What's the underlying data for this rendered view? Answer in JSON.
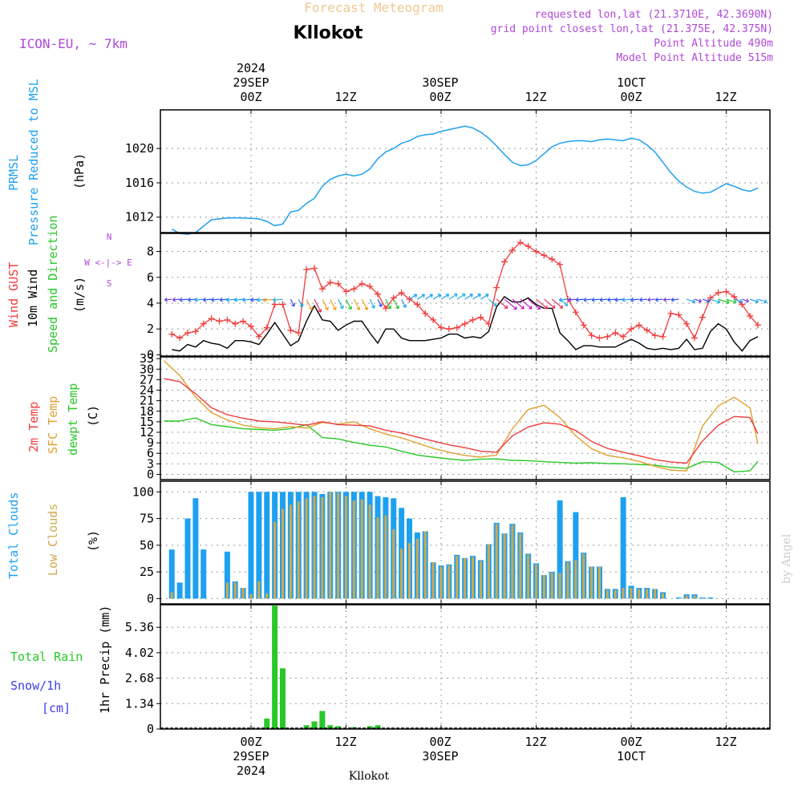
{
  "header": {
    "forecast_title": "Forecast Meteogram",
    "location": "Kllokot",
    "model": "ICON-EU, ~ 7km",
    "requested": "requested lon,lat (21.3710E, 42.3690N)",
    "gridpoint": "grid point closest lon,lat (21.375E, 42.375N)",
    "point_alt": "Point Altitude 490m",
    "model_alt": "Model Point Altitude 515m",
    "footer_location": "Kllokot",
    "credit": "by Angel"
  },
  "axes": {
    "top_times": [
      "00Z",
      "12Z",
      "00Z",
      "12Z",
      "00Z",
      "12Z"
    ],
    "top_dates": [
      "29SEP",
      "30SEP",
      "1OCT"
    ],
    "top_year": "2024",
    "bottom_times": [
      "00Z",
      "12Z",
      "00Z",
      "12Z",
      "00Z",
      "12Z"
    ],
    "bottom_dates": [
      "29SEP",
      "30SEP",
      "1OCT"
    ],
    "bottom_year": "2024"
  },
  "panel_labels": {
    "p1": [
      "PRMSL",
      "Pressure Reduced to MSL",
      "(hPa)"
    ],
    "p2": [
      "Wind GUST",
      "10m Wind",
      "Speed and Direction",
      "(m/s)"
    ],
    "p2_compass": [
      "N",
      "W <-|-> E",
      "S"
    ],
    "p3": [
      "2m Temp",
      "SFC Temp",
      "dewpt Temp",
      "(C)"
    ],
    "p4": [
      "Total Clouds",
      "Low Clouds",
      "(%)"
    ],
    "p5": [
      "Total Rain",
      "Snow/1h",
      "[cm]",
      "1hr Precip (mm)"
    ]
  },
  "colors": {
    "pressure": "#1ea0f0",
    "gust": "#f03c3c",
    "wind": "#000000",
    "temp2m": "#f03c3c",
    "sfctemp": "#e0a030",
    "dewpt": "#28c828",
    "total_clouds": "#1ea0f0",
    "low_clouds": "#d0a84c",
    "rain": "#28c828",
    "snow_label": "#3c3cf0",
    "header_purple": "#b048d8",
    "title_orange": "#f0c890"
  },
  "chart_data": [
    {
      "type": "line",
      "title": "PRMSL",
      "ylabel": "(hPa)",
      "y_ticks": [
        1012,
        1016,
        1020
      ],
      "ylim": [
        1010.2,
        1024.5
      ],
      "x": [
        -10,
        -9,
        -8,
        -7,
        -5,
        -3,
        -1,
        1,
        2,
        3,
        4,
        5,
        6,
        7,
        8,
        9,
        10,
        11,
        12,
        13,
        14,
        15,
        16,
        17,
        18,
        19,
        20,
        21,
        22,
        23,
        24,
        25,
        26,
        27,
        28,
        29,
        30,
        31,
        32,
        33,
        34,
        35,
        36,
        37,
        38,
        39,
        40,
        41,
        42,
        43,
        44,
        45,
        46,
        47,
        48,
        49,
        50,
        51,
        52,
        53,
        54,
        55,
        56,
        57,
        58,
        59,
        60,
        61,
        62,
        63,
        64
      ],
      "values": [
        1010.6,
        1010.1,
        1010.0,
        1010.2,
        1011.7,
        1011.9,
        1011.9,
        1011.8,
        1011.5,
        1011.0,
        1011.2,
        1012.6,
        1012.8,
        1013.6,
        1014.2,
        1015.6,
        1016.4,
        1016.8,
        1017.0,
        1016.8,
        1017.0,
        1017.6,
        1018.8,
        1019.6,
        1020.0,
        1020.6,
        1020.9,
        1021.4,
        1021.6,
        1021.7,
        1022.0,
        1022.2,
        1022.4,
        1022.6,
        1022.4,
        1021.9,
        1021.2,
        1020.3,
        1019.3,
        1018.4,
        1018.0,
        1018.1,
        1018.6,
        1019.4,
        1020.2,
        1020.6,
        1020.8,
        1020.9,
        1020.9,
        1020.8,
        1021.0,
        1021.1,
        1021.0,
        1020.9,
        1021.2,
        1021.0,
        1020.4,
        1019.6,
        1018.4,
        1017.2,
        1016.2,
        1015.5,
        1015.0,
        1014.8,
        1014.9,
        1015.4,
        1015.9,
        1015.6,
        1015.2,
        1015.0,
        1015.4
      ]
    },
    {
      "type": "line",
      "title": "Wind GUST / 10m Wind",
      "ylabel": "(m/s)",
      "y_ticks": [
        0,
        2,
        4,
        6,
        8
      ],
      "ylim": [
        -0.1,
        9.4
      ],
      "x": [
        -10,
        -9,
        -8,
        -7,
        -6,
        -5,
        -4,
        -3,
        -2,
        -1,
        0,
        1,
        2,
        3,
        4,
        5,
        6,
        7,
        8,
        9,
        10,
        11,
        12,
        13,
        14,
        15,
        16,
        17,
        18,
        19,
        20,
        21,
        22,
        23,
        24,
        25,
        26,
        27,
        28,
        29,
        30,
        31,
        32,
        33,
        34,
        35,
        36,
        37,
        38,
        39,
        40,
        41,
        42,
        43,
        44,
        45,
        46,
        47,
        48,
        49,
        50,
        51,
        52,
        53,
        54,
        55,
        56,
        57,
        58,
        59,
        60,
        61,
        62,
        63,
        64
      ],
      "series": [
        {
          "name": "Wind GUST",
          "values": [
            1.6,
            1.3,
            1.7,
            1.8,
            2.4,
            2.8,
            2.6,
            2.7,
            2.4,
            2.6,
            2.2,
            1.4,
            2.1,
            3.9,
            3.9,
            1.9,
            1.7,
            6.6,
            6.7,
            5.1,
            5.6,
            5.5,
            4.9,
            5.1,
            5.5,
            5.3,
            4.7,
            3.6,
            4.4,
            4.8,
            4.3,
            3.9,
            3.2,
            2.7,
            2.1,
            2.0,
            2.1,
            2.4,
            2.7,
            2.9,
            2.4,
            5.2,
            7.2,
            8.1,
            8.7,
            8.4,
            8.0,
            7.7,
            7.4,
            7.0,
            4.3,
            3.3,
            2.3,
            1.5,
            1.3,
            1.4,
            1.7,
            1.4,
            2.0,
            2.3,
            1.9,
            1.5,
            1.4,
            3.2,
            3.1,
            2.4,
            1.3,
            2.9,
            4.4,
            4.8,
            4.9,
            4.5,
            3.9,
            3.0,
            2.3
          ]
        },
        {
          "name": "10m Wind",
          "values": [
            0.4,
            0.3,
            0.8,
            0.6,
            1.1,
            0.9,
            0.8,
            0.5,
            1.1,
            1.1,
            1.0,
            0.8,
            1.6,
            2.5,
            1.6,
            0.7,
            1.1,
            2.6,
            3.8,
            2.7,
            2.6,
            1.9,
            2.3,
            2.6,
            2.6,
            1.7,
            0.9,
            2.0,
            2.0,
            1.3,
            1.1,
            1.1,
            1.1,
            1.2,
            1.3,
            1.6,
            1.6,
            1.3,
            1.4,
            1.3,
            1.8,
            3.7,
            4.5,
            4.1,
            4.1,
            4.4,
            3.9,
            3.6,
            3.6,
            1.7,
            1.1,
            0.4,
            0.7,
            0.7,
            0.6,
            0.6,
            0.6,
            0.9,
            1.2,
            0.9,
            0.5,
            0.4,
            0.5,
            0.4,
            0.5,
            1.2,
            0.4,
            0.5,
            1.8,
            2.4,
            2.0,
            1.0,
            0.3,
            1.1,
            1.4
          ]
        }
      ]
    },
    {
      "type": "line",
      "title": "2m Temp / SFC Temp / dewpt Temp",
      "ylabel": "(C)",
      "y_ticks": [
        0,
        3,
        6,
        9,
        12,
        15,
        18,
        21,
        24,
        27,
        30,
        33
      ],
      "ylim": [
        -1.5,
        33.5
      ],
      "x": [
        -11,
        -9,
        -7,
        -5,
        -3,
        -1,
        1,
        3,
        5,
        7,
        9,
        11,
        13,
        15,
        17,
        19,
        21,
        23,
        25,
        27,
        29,
        31,
        33,
        35,
        37,
        39,
        41,
        43,
        45,
        47,
        49,
        51,
        53,
        55,
        57,
        59,
        61,
        63,
        64
      ],
      "series": [
        {
          "name": "2m Temp",
          "values": [
            27.3,
            26.4,
            23.0,
            19.0,
            17.0,
            16.0,
            15.2,
            15.0,
            14.5,
            14.0,
            15.0,
            14.2,
            14.0,
            13.8,
            12.6,
            11.8,
            10.6,
            9.5,
            8.4,
            7.6,
            6.6,
            6.3,
            11.0,
            13.5,
            14.7,
            14.3,
            12.5,
            9.4,
            7.4,
            6.3,
            5.3,
            4.2,
            3.5,
            3.2,
            9.5,
            14.0,
            16.5,
            16.2,
            11.6
          ]
        },
        {
          "name": "SFC Temp",
          "values": [
            32.4,
            28.2,
            22.0,
            17.6,
            15.5,
            14.0,
            13.3,
            13.0,
            13.6,
            13.2,
            14.8,
            14.3,
            15.0,
            13.0,
            11.5,
            10.4,
            8.9,
            7.4,
            6.3,
            5.4,
            4.9,
            5.5,
            13.0,
            18.5,
            19.7,
            16.2,
            11.0,
            7.3,
            5.4,
            4.7,
            3.7,
            2.3,
            1.2,
            1.0,
            13.8,
            19.5,
            22.0,
            19.0,
            8.7
          ]
        },
        {
          "name": "dewpt Temp",
          "values": [
            15.2,
            15.2,
            16.1,
            14.2,
            13.6,
            13.0,
            12.8,
            12.6,
            13.0,
            14.2,
            10.5,
            10.1,
            9.1,
            8.3,
            7.8,
            6.6,
            5.5,
            4.9,
            4.4,
            4.0,
            4.3,
            4.4,
            4.0,
            3.9,
            3.6,
            3.4,
            3.2,
            3.3,
            3.1,
            3.0,
            2.8,
            2.6,
            2.0,
            1.7,
            3.6,
            3.4,
            0.7,
            1.0,
            3.7
          ]
        }
      ]
    },
    {
      "type": "bar",
      "title": "Total Clouds / Low Clouds",
      "ylabel": "(%)",
      "y_ticks": [
        0,
        25,
        50,
        75,
        100
      ],
      "ylim": [
        -5,
        110
      ],
      "x": [
        -10,
        -9,
        -8,
        -7,
        -6,
        -5,
        -4,
        -3,
        -2,
        -1,
        0,
        1,
        2,
        3,
        4,
        5,
        6,
        7,
        8,
        9,
        10,
        11,
        12,
        13,
        14,
        15,
        16,
        17,
        18,
        19,
        20,
        21,
        22,
        23,
        24,
        25,
        26,
        27,
        28,
        29,
        30,
        31,
        32,
        33,
        34,
        35,
        36,
        37,
        38,
        39,
        40,
        41,
        42,
        43,
        44,
        45,
        46,
        47,
        48,
        49,
        50,
        51,
        52,
        53,
        54,
        55,
        56,
        57,
        58,
        59,
        60,
        61,
        62,
        63,
        64
      ],
      "series": [
        {
          "name": "Total Clouds",
          "values": [
            46,
            15,
            75,
            94,
            46,
            0,
            0,
            44,
            16,
            10,
            100,
            100,
            100,
            100,
            100,
            100,
            100,
            100,
            100,
            98,
            100,
            100,
            100,
            100,
            100,
            100,
            96,
            95,
            94,
            85,
            75,
            62,
            63,
            34,
            31,
            32,
            41,
            38,
            40,
            36,
            51,
            71,
            61,
            70,
            62,
            42,
            33,
            22,
            25,
            92,
            35,
            81,
            43,
            30,
            30,
            9,
            9,
            95,
            12,
            10,
            10,
            9,
            6,
            0,
            1,
            4,
            4,
            1,
            1,
            0,
            0,
            0,
            0,
            0,
            0
          ]
        },
        {
          "name": "Low Clouds",
          "values": [
            6,
            0,
            0,
            0,
            0,
            0,
            0,
            15,
            15,
            10,
            4,
            16,
            5,
            72,
            84,
            88,
            91,
            94,
            96,
            95,
            100,
            99,
            96,
            92,
            93,
            88,
            76,
            78,
            65,
            47,
            52,
            56,
            63,
            34,
            30,
            31,
            40,
            38,
            39,
            35,
            51,
            70,
            61,
            69,
            61,
            41,
            32,
            22,
            24,
            24,
            34,
            36,
            42,
            30,
            30,
            8,
            8,
            10,
            10,
            9,
            9,
            9,
            5,
            0,
            0,
            3,
            3,
            0,
            0,
            0,
            0,
            0,
            0,
            0,
            0
          ]
        }
      ]
    },
    {
      "type": "bar",
      "title": "Total Rain / Snow per 1h",
      "ylabel": "1hr Precip (mm)",
      "y_ticks": [
        0,
        1.34,
        2.68,
        4.02,
        5.36
      ],
      "ylim": [
        0,
        6.55
      ],
      "x": [
        2,
        3,
        4,
        7,
        8,
        9,
        10,
        11,
        13,
        15,
        16
      ],
      "series": [
        {
          "name": "Total Rain",
          "values": [
            0.55,
            6.5,
            3.2,
            0.2,
            0.4,
            0.95,
            0.2,
            0.15,
            0.1,
            0.15,
            0.2
          ]
        }
      ]
    }
  ]
}
